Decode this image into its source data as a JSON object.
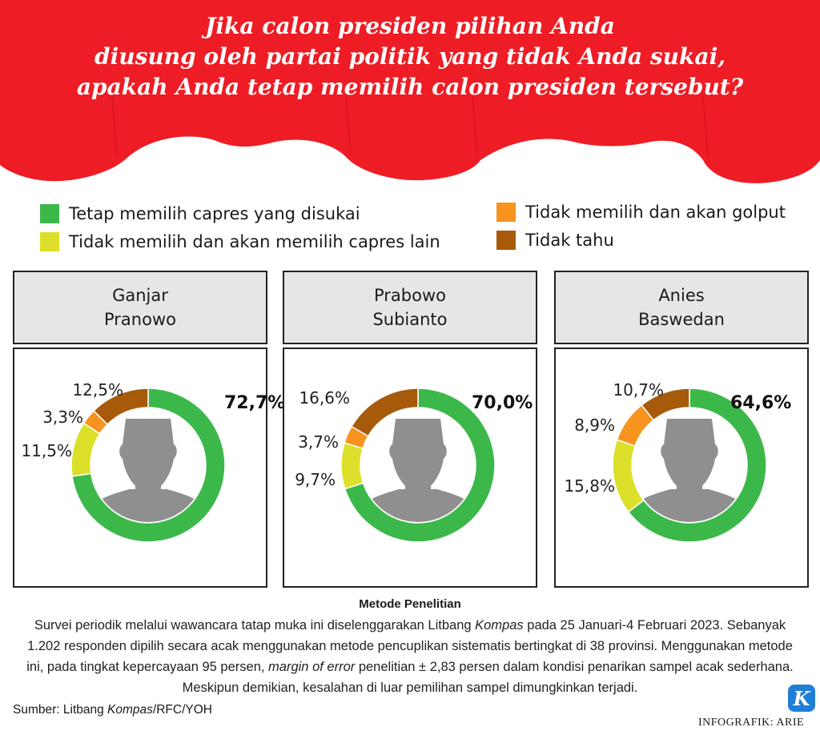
{
  "title": {
    "line1": "Jika calon presiden pilihan Anda",
    "line2": "diusung oleh partai politik yang tidak Anda sukai,",
    "line3": "apakah Anda tetap memilih calon presiden tersebut?"
  },
  "legend": [
    {
      "label": "Tetap memilih capres yang disukai",
      "color": "#3cb84a"
    },
    {
      "label": "Tidak memilih dan akan memilih capres lain",
      "color": "#dce02a"
    },
    {
      "label": "Tidak memilih dan akan golput",
      "color": "#f7931e"
    },
    {
      "label": "Tidak tahu",
      "color": "#a65a0a"
    }
  ],
  "colors": {
    "banner": "#ee1c24",
    "avatar": "#8f8f8f",
    "card_header": "#e6e6e6"
  },
  "chart_data": [
    {
      "type": "pie",
      "title": "Ganjar Pranowo",
      "name_line1": "Ganjar",
      "name_line2": "Pranowo",
      "categories": [
        "Tetap memilih capres yang disukai",
        "Tidak memilih dan akan memilih capres lain",
        "Tidak memilih dan akan golput",
        "Tidak tahu"
      ],
      "values": [
        72.7,
        11.5,
        3.3,
        12.5
      ],
      "labels": [
        "72,7%",
        "11,5%",
        "3,3%",
        "12,5%"
      ]
    },
    {
      "type": "pie",
      "title": "Prabowo Subianto",
      "name_line1": "Prabowo",
      "name_line2": "Subianto",
      "categories": [
        "Tetap memilih capres yang disukai",
        "Tidak memilih dan akan memilih capres lain",
        "Tidak memilih dan akan golput",
        "Tidak tahu"
      ],
      "values": [
        70.0,
        9.7,
        3.7,
        16.6
      ],
      "labels": [
        "70,0%",
        "9,7%",
        "3,7%",
        "16,6%"
      ]
    },
    {
      "type": "pie",
      "title": "Anies Baswedan",
      "name_line1": "Anies",
      "name_line2": "Baswedan",
      "categories": [
        "Tetap memilih capres yang disukai",
        "Tidak memilih dan akan memilih capres lain",
        "Tidak memilih dan akan golput",
        "Tidak tahu"
      ],
      "values": [
        64.6,
        15.8,
        8.9,
        10.7
      ],
      "labels": [
        "64,6%",
        "15,8%",
        "8,9%",
        "10,7%"
      ]
    }
  ],
  "method": {
    "title": "Metode Penelitian",
    "p1": "Survei periodik melalui wawancara tatap muka ini diselenggarakan Litbang ",
    "p1_em": "Kompas",
    "p2": " pada 25 Januari-4 Februari 2023. Sebanyak 1.202 responden dipilih secara acak menggunakan metode pencuplikan sistematis bertingkat di 38 provinsi. Menggunakan metode ini, pada tingkat kepercayaan 95 persen, ",
    "p2_em": "margin of error",
    "p3": " penelitian ± 2,83 persen dalam kondisi penarikan sampel acak sederhana. Meskipun demikian, kesalahan di luar pemilihan sampel dimungkinkan terjadi."
  },
  "source": {
    "prefix": "Sumber: Litbang ",
    "em": "Kompas",
    "suffix": "/RFC/YOH"
  },
  "credit": "INFOGRAFIK: ARIE",
  "logo_letter": "K"
}
